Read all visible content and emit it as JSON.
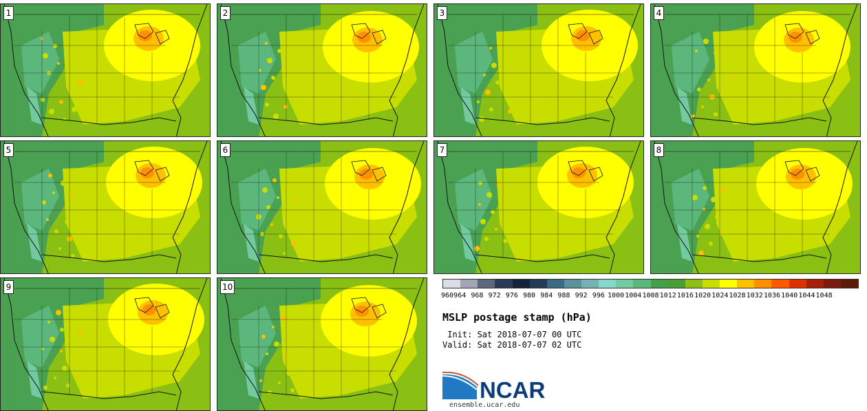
{
  "stamps": [
    {
      "label": "1",
      "col": 0,
      "row": 0
    },
    {
      "label": "2",
      "col": 1,
      "row": 0
    },
    {
      "label": "3",
      "col": 2,
      "row": 0
    },
    {
      "label": "4",
      "col": 3,
      "row": 0
    },
    {
      "label": "5",
      "col": 0,
      "row": 1
    },
    {
      "label": "6",
      "col": 1,
      "row": 1
    },
    {
      "label": "7",
      "col": 2,
      "row": 1
    },
    {
      "label": "8",
      "col": 3,
      "row": 1
    },
    {
      "label": "9",
      "col": 0,
      "row": 2
    },
    {
      "label": "10",
      "col": 1,
      "row": 2
    }
  ],
  "colorbar": {
    "colors": [
      "#dcdde6",
      "#a3a4b4",
      "#5f677d",
      "#2b3b55",
      "#16213a",
      "#243b55",
      "#3b6a82",
      "#5a919a",
      "#75b3b2",
      "#86d8c8",
      "#73c9a0",
      "#5bb77c",
      "#44a048",
      "#4a9e36",
      "#8fbf14",
      "#c8de00",
      "#ffff00",
      "#ffc000",
      "#ff9000",
      "#ff5a00",
      "#e13000",
      "#a81e08",
      "#7a1a10",
      "#5c1a0a"
    ],
    "ticks": [
      "960",
      "964",
      "968",
      "972",
      "976",
      "980",
      "984",
      "988",
      "992",
      "996",
      "1000",
      "1004",
      "1008",
      "1012",
      "1016",
      "1020",
      "1024",
      "1028",
      "1032",
      "1036",
      "1040",
      "1044",
      "1048"
    ]
  },
  "title": "MSLP postage stamp (hPa)",
  "init": " Init: Sat 2018-07-07 00 UTC",
  "valid": "Valid: Sat 2018-07-07 02 UTC",
  "logo": {
    "text": "NCAR",
    "color": "#0a3d7a",
    "accent": "#1f79c3"
  },
  "website": "ensemble.ucar.edu",
  "map_colors": {
    "ocean": "#8abf14",
    "land_low": "#c8de00",
    "high1": "#ffff00",
    "high2": "#ffc000",
    "high3": "#ff9000",
    "mid": "#8fbf14",
    "west1": "#4aa152",
    "west2": "#5bb77c",
    "west3": "#73c9a0",
    "lines": "#111111"
  }
}
